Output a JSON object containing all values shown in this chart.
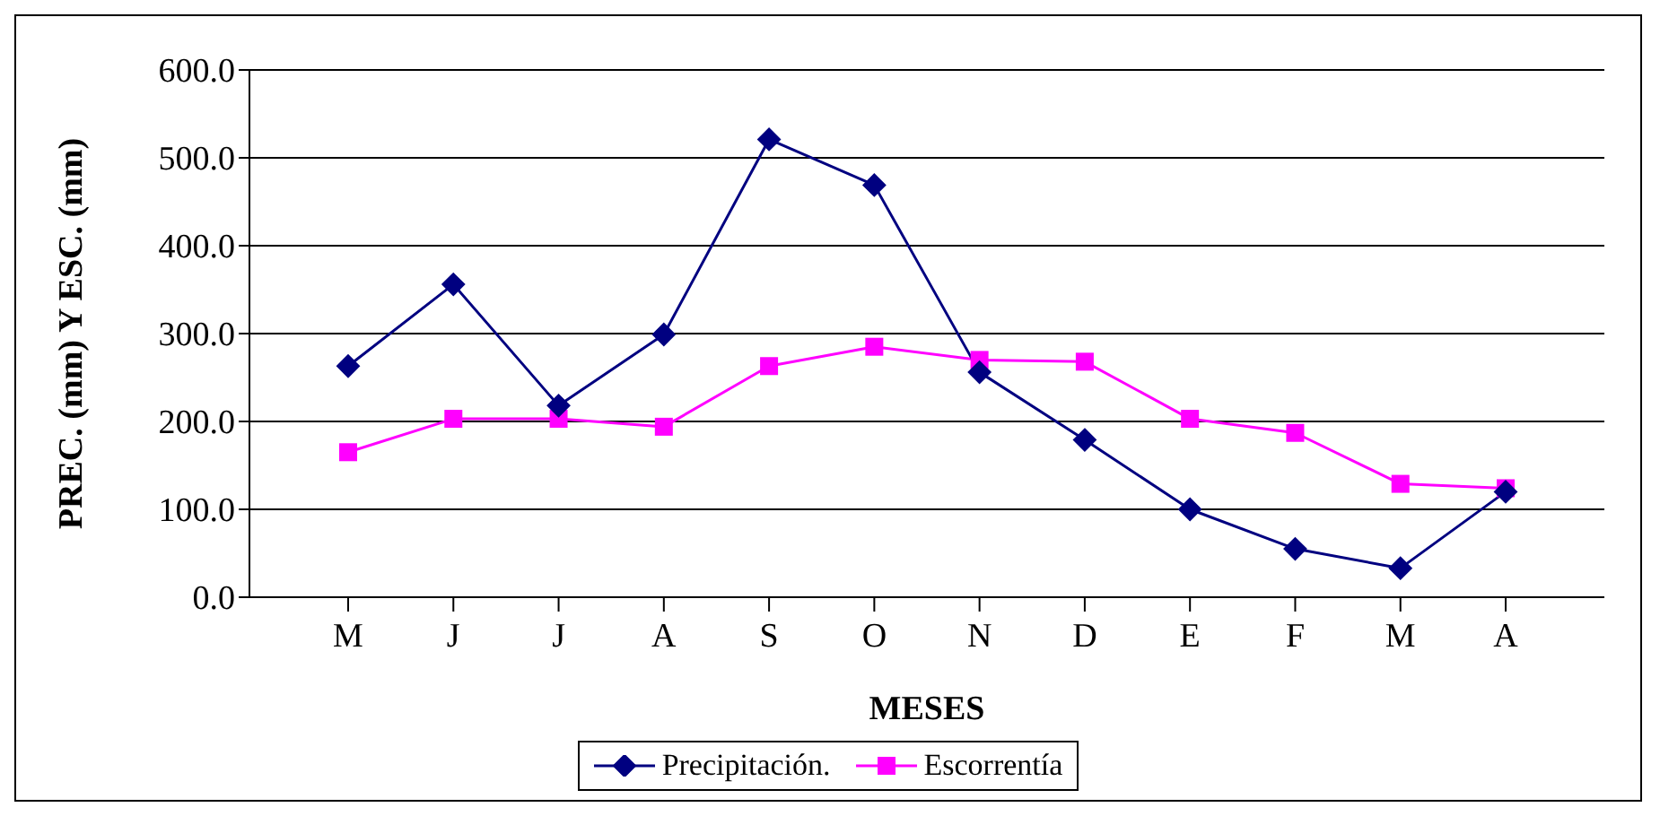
{
  "chart_data": {
    "type": "line",
    "xlabel": "MESES",
    "ylabel": "PREC. (mm) Y ESC. (mm)",
    "categories": [
      "M",
      "J",
      "J",
      "A",
      "S",
      "O",
      "N",
      "D",
      "E",
      "F",
      "M",
      "A"
    ],
    "series": [
      {
        "name": "Precipitación.",
        "color": "#000080",
        "marker": "diamond",
        "values": [
          263,
          356,
          218,
          299,
          521,
          469,
          256,
          179,
          100,
          55,
          33,
          120
        ]
      },
      {
        "name": "Escorrentía",
        "color": "#ff00ff",
        "marker": "square",
        "values": [
          165,
          203,
          203,
          194,
          263,
          285,
          270,
          268,
          203,
          187,
          129,
          124
        ]
      }
    ],
    "ylim": [
      0,
      600
    ],
    "yticks": [
      {
        "value": 0,
        "label": "0.0"
      },
      {
        "value": 100,
        "label": "100.0"
      },
      {
        "value": 200,
        "label": "200.0"
      },
      {
        "value": 300,
        "label": "300.0"
      },
      {
        "value": 400,
        "label": "400.0"
      },
      {
        "value": 500,
        "label": "500.0"
      },
      {
        "value": 600,
        "label": "600.0"
      }
    ],
    "grid": "y",
    "legend": "bottom",
    "line_style": "solid"
  }
}
